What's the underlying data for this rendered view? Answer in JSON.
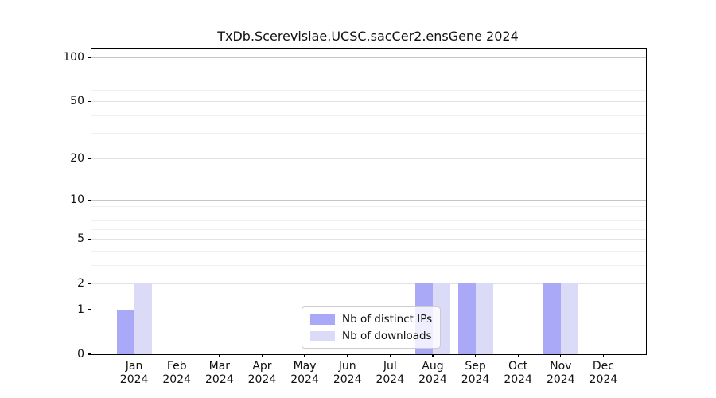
{
  "chart_data": {
    "type": "bar",
    "title": "TxDb.Scerevisiae.UCSC.sacCer2.ensGene 2024",
    "categories": [
      "Jan",
      "Feb",
      "Mar",
      "Apr",
      "May",
      "Jun",
      "Jul",
      "Aug",
      "Sep",
      "Oct",
      "Nov",
      "Dec"
    ],
    "year_label": "2024",
    "series": [
      {
        "key": "distinct-ips",
        "name": "Nb of distinct IPs",
        "color": "#a9a9f7",
        "values": [
          1,
          0,
          0,
          0,
          0,
          0,
          0,
          2,
          2,
          0,
          2,
          0
        ]
      },
      {
        "key": "downloads",
        "name": "Nb of downloads",
        "color": "#dbdbf8",
        "values": [
          2,
          0,
          0,
          0,
          0,
          0,
          0,
          2,
          2,
          0,
          2,
          0
        ]
      }
    ],
    "yscale": "log1p",
    "ylim": [
      0,
      115
    ],
    "yticks": [
      0,
      1,
      2,
      5,
      10,
      20,
      50,
      100
    ],
    "major_gridlines": [
      1,
      10,
      100
    ],
    "minor_gridlines": [
      3,
      4,
      6,
      7,
      8,
      9,
      30,
      40,
      60,
      70,
      80,
      90
    ],
    "grid": "horizontal",
    "legend_position": "inside-bottom-center",
    "colors": {
      "axis": "#000000",
      "text": "#111111",
      "major_grid": "#c6c6c6",
      "mid_grid": "#e2e2e2",
      "minor_grid": "#efefef",
      "legend_border": "#cccccc",
      "legend_background": "rgba(255,255,255,0.8)"
    }
  }
}
